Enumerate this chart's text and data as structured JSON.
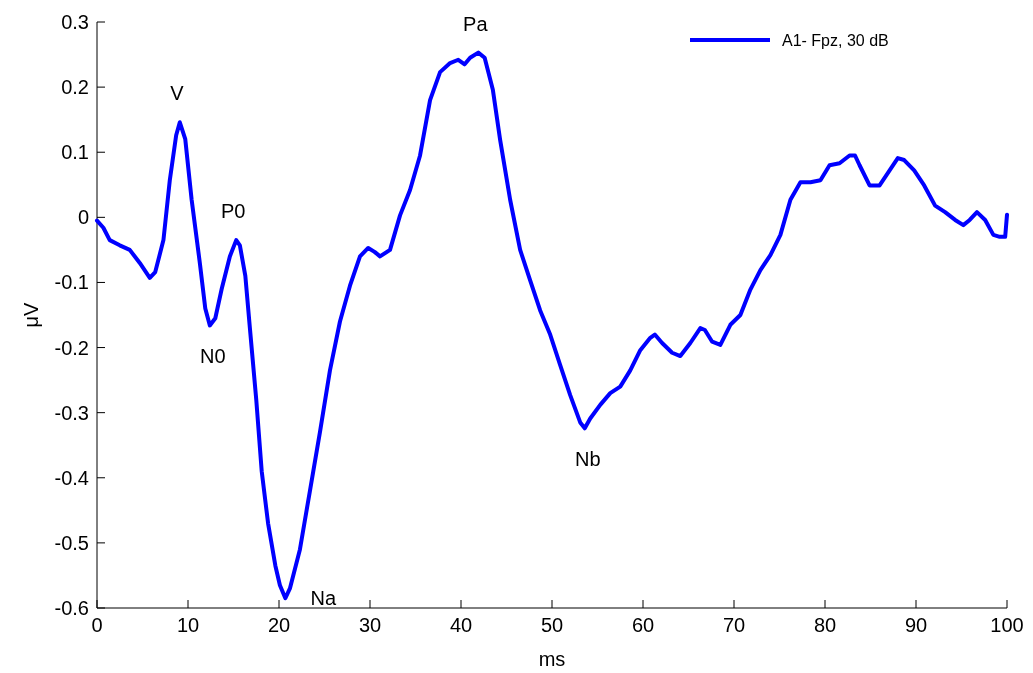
{
  "chart_data": {
    "type": "line",
    "xlabel": "ms",
    "ylabel": "μV",
    "xlim": [
      0,
      100
    ],
    "ylim": [
      -0.6,
      0.3
    ],
    "xticks": [
      0,
      10,
      20,
      30,
      40,
      50,
      60,
      70,
      80,
      90,
      100
    ],
    "yticks": [
      -0.6,
      -0.5,
      -0.4,
      -0.3,
      -0.2,
      -0.1,
      0,
      0.1,
      0.2,
      0.3
    ],
    "grid": false,
    "legend": "top right",
    "line_style": "solid",
    "marker": "none",
    "series": [
      {
        "name": "A1- Fpz, 30 dB",
        "color": "#0000ff",
        "x": [
          0,
          0.7,
          1.4,
          2.5,
          3.6,
          4.7,
          5.8,
          6.4,
          7.3,
          8.0,
          8.7,
          9.1,
          9.7,
          10.4,
          11.3,
          11.9,
          12.4,
          13.0,
          13.7,
          14.6,
          15.3,
          15.7,
          16.3,
          16.8,
          17.5,
          18.1,
          18.8,
          19.6,
          20.1,
          20.7,
          21.2,
          22.3,
          23.4,
          24.5,
          25.6,
          26.7,
          27.8,
          28.9,
          29.8,
          30.5,
          31.1,
          32.2,
          33.3,
          34.4,
          35.5,
          36.6,
          37.7,
          38.8,
          39.7,
          40.4,
          41.0,
          41.9,
          42.6,
          43.5,
          44.3,
          45.4,
          46.5,
          47.6,
          48.7,
          49.8,
          50.9,
          52.0,
          53.1,
          53.6,
          54.2,
          55.3,
          56.4,
          57.5,
          58.6,
          59.7,
          60.8,
          61.3,
          62.1,
          63.2,
          64.1,
          65.2,
          66.3,
          66.8,
          67.6,
          68.5,
          69.6,
          70.7,
          71.8,
          72.9,
          74.0,
          75.1,
          76.2,
          77.3,
          78.4,
          79.5,
          80.5,
          81.6,
          82.7,
          83.3,
          83.8,
          84.9,
          86.0,
          87.1,
          88.0,
          88.7,
          89.8,
          90.9,
          92.1,
          93.2,
          94.3,
          95.2,
          95.9,
          96.7,
          97.6,
          98.5,
          99.2,
          99.8,
          100
        ],
        "values": [
          -0.005,
          -0.016,
          -0.035,
          -0.043,
          -0.05,
          -0.07,
          -0.093,
          -0.084,
          -0.035,
          0.057,
          0.126,
          0.146,
          0.12,
          0.027,
          -0.07,
          -0.14,
          -0.166,
          -0.155,
          -0.11,
          -0.06,
          -0.035,
          -0.043,
          -0.09,
          -0.17,
          -0.28,
          -0.39,
          -0.47,
          -0.535,
          -0.565,
          -0.585,
          -0.57,
          -0.51,
          -0.42,
          -0.33,
          -0.235,
          -0.16,
          -0.105,
          -0.06,
          -0.047,
          -0.053,
          -0.06,
          -0.05,
          0.003,
          0.042,
          0.095,
          0.18,
          0.223,
          0.237,
          0.242,
          0.235,
          0.245,
          0.253,
          0.245,
          0.196,
          0.119,
          0.027,
          -0.05,
          -0.097,
          -0.143,
          -0.18,
          -0.227,
          -0.273,
          -0.315,
          -0.324,
          -0.309,
          -0.288,
          -0.27,
          -0.26,
          -0.235,
          -0.204,
          -0.185,
          -0.18,
          -0.193,
          -0.208,
          -0.213,
          -0.193,
          -0.17,
          -0.173,
          -0.191,
          -0.196,
          -0.165,
          -0.15,
          -0.111,
          -0.081,
          -0.058,
          -0.027,
          0.027,
          0.054,
          0.054,
          0.057,
          0.08,
          0.083,
          0.095,
          0.095,
          0.08,
          0.049,
          0.049,
          0.072,
          0.091,
          0.088,
          0.072,
          0.049,
          0.018,
          0.008,
          -0.004,
          -0.012,
          -0.004,
          0.008,
          -0.004,
          -0.027,
          -0.03,
          -0.03,
          0.004
        ]
      }
    ],
    "annotations": [
      {
        "text": "V",
        "x": 9.1,
        "y": 0.146
      },
      {
        "text": "N0",
        "x": 12.4,
        "y": -0.166
      },
      {
        "text": "P0",
        "x": 15.3,
        "y": -0.035
      },
      {
        "text": "Na",
        "x": 20.7,
        "y": -0.585
      },
      {
        "text": "Pa",
        "x": 41.9,
        "y": 0.253
      },
      {
        "text": "Nb",
        "x": 53.6,
        "y": -0.324
      }
    ]
  }
}
